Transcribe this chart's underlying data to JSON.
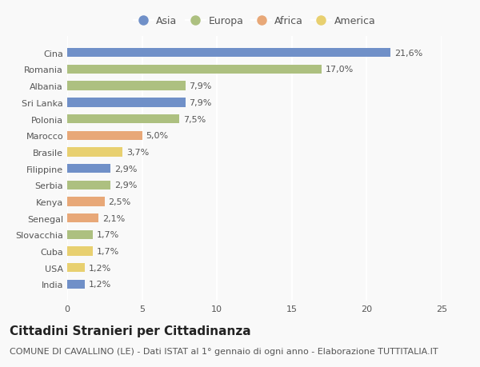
{
  "countries": [
    "Cina",
    "Romania",
    "Albania",
    "Sri Lanka",
    "Polonia",
    "Marocco",
    "Brasile",
    "Filippine",
    "Serbia",
    "Kenya",
    "Senegal",
    "Slovacchia",
    "Cuba",
    "USA",
    "India"
  ],
  "values": [
    21.6,
    17.0,
    7.9,
    7.9,
    7.5,
    5.0,
    3.7,
    2.9,
    2.9,
    2.5,
    2.1,
    1.7,
    1.7,
    1.2,
    1.2
  ],
  "labels": [
    "21,6%",
    "17,0%",
    "7,9%",
    "7,9%",
    "7,5%",
    "5,0%",
    "3,7%",
    "2,9%",
    "2,9%",
    "2,5%",
    "2,1%",
    "1,7%",
    "1,7%",
    "1,2%",
    "1,2%"
  ],
  "continents": [
    "Asia",
    "Europa",
    "Europa",
    "Asia",
    "Europa",
    "Africa",
    "America",
    "Asia",
    "Europa",
    "Africa",
    "Africa",
    "Europa",
    "America",
    "America",
    "Asia"
  ],
  "colors": {
    "Asia": "#7090c8",
    "Europa": "#adc080",
    "Africa": "#e8a878",
    "America": "#e8d070"
  },
  "legend_order": [
    "Asia",
    "Europa",
    "Africa",
    "America"
  ],
  "xlim": [
    0,
    25
  ],
  "xticks": [
    0,
    5,
    10,
    15,
    20,
    25
  ],
  "title": "Cittadini Stranieri per Cittadinanza",
  "subtitle": "COMUNE DI CAVALLINO (LE) - Dati ISTAT al 1° gennaio di ogni anno - Elaborazione TUTTITALIA.IT",
  "background_color": "#f9f9f9",
  "grid_color": "#ffffff",
  "bar_height": 0.55,
  "title_fontsize": 11,
  "subtitle_fontsize": 8,
  "label_fontsize": 8,
  "tick_fontsize": 8,
  "legend_fontsize": 9
}
